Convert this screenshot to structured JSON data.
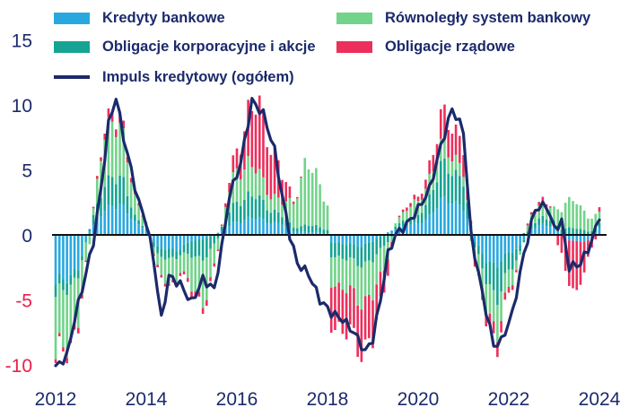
{
  "chart_data": {
    "type": "bar",
    "stacked": true,
    "title": "",
    "xlabel": "",
    "ylabel": "",
    "ylim": [
      -10.5,
      16
    ],
    "yticks": [
      15,
      10,
      5,
      0,
      -5,
      -10
    ],
    "xticks": [
      "2012",
      "2014",
      "2016",
      "2018",
      "2020",
      "2022",
      "2024"
    ],
    "x_start": "2012-01",
    "x_end": "2024-01",
    "grid": false,
    "legend_position": "top",
    "colors": {
      "bank": "#29a8e0",
      "shadow": "#72d38a",
      "corp": "#16a393",
      "gov": "#ec2f5c",
      "impulse": "#1b2a6b",
      "axis_text_pos": "#1b2a6b",
      "axis_text_neg": "#e8204b"
    },
    "series": [
      {
        "key": "bank",
        "name": "Kredyty bankowe",
        "kind": "bar"
      },
      {
        "key": "shadow",
        "name": "Równoległy system bankowy",
        "kind": "bar"
      },
      {
        "key": "corp",
        "name": "Obligacje korporacyjne i akcje",
        "kind": "bar"
      },
      {
        "key": "gov",
        "name": "Obligacje rządowe",
        "kind": "bar"
      },
      {
        "key": "impulse",
        "name": "Impuls kredytowy (ogółem)",
        "kind": "line"
      }
    ],
    "components_anchor": [
      {
        "date": "2012-01",
        "bank": -4.0,
        "shadow": -5.0,
        "corp": -1.0,
        "gov": -0.3
      },
      {
        "date": "2012-07",
        "bank": -2.5,
        "shadow": -3.5,
        "corp": -0.6,
        "gov": -0.4
      },
      {
        "date": "2012-10",
        "bank": 0.3,
        "shadow": -0.8,
        "corp": 0.2,
        "gov": 0.0
      },
      {
        "date": "2013-01",
        "bank": 1.5,
        "shadow": 3.0,
        "corp": 1.5,
        "gov": 0.3
      },
      {
        "date": "2013-04",
        "bank": 2.5,
        "shadow": 4.8,
        "corp": 2.5,
        "gov": 0.8
      },
      {
        "date": "2013-07",
        "bank": 2.0,
        "shadow": 3.2,
        "corp": 1.8,
        "gov": 0.5
      },
      {
        "date": "2013-10",
        "bank": 1.0,
        "shadow": 1.5,
        "corp": 0.5,
        "gov": 0.3
      },
      {
        "date": "2014-01",
        "bank": 0.5,
        "shadow": 0.5,
        "corp": 0.0,
        "gov": 0.0
      },
      {
        "date": "2014-04",
        "bank": -1.0,
        "shadow": -1.0,
        "corp": -0.6,
        "gov": -0.2
      },
      {
        "date": "2014-07",
        "bank": -1.2,
        "shadow": -2.2,
        "corp": -0.8,
        "gov": -0.2
      },
      {
        "date": "2014-10",
        "bank": -1.0,
        "shadow": -1.2,
        "corp": -0.4,
        "gov": -0.2
      },
      {
        "date": "2015-01",
        "bank": -0.5,
        "shadow": -2.5,
        "corp": -1.2,
        "gov": -0.4
      },
      {
        "date": "2015-04",
        "bank": -0.3,
        "shadow": -3.3,
        "corp": -1.5,
        "gov": -0.4
      },
      {
        "date": "2015-07",
        "bank": 0.0,
        "shadow": -1.8,
        "corp": -0.8,
        "gov": -0.3
      },
      {
        "date": "2015-10",
        "bank": 0.5,
        "shadow": 1.0,
        "corp": 0.8,
        "gov": 0.3
      },
      {
        "date": "2016-01",
        "bank": 1.0,
        "shadow": 2.5,
        "corp": 1.5,
        "gov": 1.5
      },
      {
        "date": "2016-04",
        "bank": 1.3,
        "shadow": 2.5,
        "corp": 1.8,
        "gov": 4.0
      },
      {
        "date": "2016-07",
        "bank": 1.2,
        "shadow": 1.8,
        "corp": 1.5,
        "gov": 5.0
      },
      {
        "date": "2016-10",
        "bank": 1.0,
        "shadow": 1.2,
        "corp": 1.0,
        "gov": 4.0
      },
      {
        "date": "2017-01",
        "bank": 0.8,
        "shadow": 1.0,
        "corp": 0.6,
        "gov": 2.0
      },
      {
        "date": "2017-04",
        "bank": 0.3,
        "shadow": 2.0,
        "corp": 0.3,
        "gov": 0.2
      },
      {
        "date": "2017-07",
        "bank": 0.2,
        "shadow": 4.5,
        "corp": 0.5,
        "gov": 0.0
      },
      {
        "date": "2017-10",
        "bank": 0.2,
        "shadow": 4.0,
        "corp": 0.5,
        "gov": 0.0
      },
      {
        "date": "2018-01",
        "bank": 0.1,
        "shadow": 2.0,
        "corp": 0.3,
        "gov": 0.0
      },
      {
        "date": "2018-02",
        "bank": -0.5,
        "shadow": -2.0,
        "corp": -1.0,
        "gov": -3.0
      },
      {
        "date": "2018-07",
        "bank": -0.8,
        "shadow": -2.5,
        "corp": -1.2,
        "gov": -3.5
      },
      {
        "date": "2018-10",
        "bank": -0.8,
        "shadow": -2.8,
        "corp": -1.4,
        "gov": -3.5
      },
      {
        "date": "2019-01",
        "bank": -0.5,
        "shadow": -2.8,
        "corp": -1.5,
        "gov": -3.5
      },
      {
        "date": "2019-04",
        "bank": 0.0,
        "shadow": -1.8,
        "corp": -0.8,
        "gov": -1.6
      },
      {
        "date": "2019-07",
        "bank": 0.5,
        "shadow": 0.3,
        "corp": 0.2,
        "gov": 0.0
      },
      {
        "date": "2019-10",
        "bank": 0.8,
        "shadow": 0.8,
        "corp": 0.5,
        "gov": 0.3
      },
      {
        "date": "2020-01",
        "bank": 0.8,
        "shadow": 1.0,
        "corp": 0.6,
        "gov": 0.3
      },
      {
        "date": "2020-04",
        "bank": 1.5,
        "shadow": 1.5,
        "corp": 1.5,
        "gov": 1.0
      },
      {
        "date": "2020-07",
        "bank": 2.5,
        "shadow": 1.5,
        "corp": 2.5,
        "gov": 2.0
      },
      {
        "date": "2020-10",
        "bank": 2.8,
        "shadow": 1.3,
        "corp": 2.5,
        "gov": 2.5
      },
      {
        "date": "2021-01",
        "bank": 2.0,
        "shadow": 0.8,
        "corp": 2.0,
        "gov": 1.8
      },
      {
        "date": "2021-04",
        "bank": -0.5,
        "shadow": -1.0,
        "corp": -0.5,
        "gov": -0.5
      },
      {
        "date": "2021-07",
        "bank": -2.0,
        "shadow": -2.2,
        "corp": -1.5,
        "gov": -0.8
      },
      {
        "date": "2021-10",
        "bank": -2.2,
        "shadow": -2.5,
        "corp": -2.5,
        "gov": -1.0
      },
      {
        "date": "2022-01",
        "bank": -1.5,
        "shadow": -1.5,
        "corp": -1.5,
        "gov": -0.5
      },
      {
        "date": "2022-04",
        "bank": -0.8,
        "shadow": -0.3,
        "corp": -0.5,
        "gov": 0.0
      },
      {
        "date": "2022-07",
        "bank": 0.5,
        "shadow": 0.8,
        "corp": 0.5,
        "gov": 0.2
      },
      {
        "date": "2022-10",
        "bank": 0.8,
        "shadow": 1.0,
        "corp": 0.5,
        "gov": 0.3
      },
      {
        "date": "2023-01",
        "bank": 0.5,
        "shadow": 1.0,
        "corp": 0.5,
        "gov": 0.0
      },
      {
        "date": "2023-04",
        "bank": -0.3,
        "shadow": 2.0,
        "corp": 0.5,
        "gov": -2.5
      },
      {
        "date": "2023-07",
        "bank": -0.5,
        "shadow": 2.0,
        "corp": 0.5,
        "gov": -4.0
      },
      {
        "date": "2023-10",
        "bank": -0.5,
        "shadow": 1.2,
        "corp": 0.3,
        "gov": -1.5
      },
      {
        "date": "2024-01",
        "bank": 0.5,
        "shadow": 0.8,
        "corp": 0.3,
        "gov": 0.3
      }
    ],
    "impulse_anchor": [
      {
        "date": "2012-01",
        "value": -10.2
      },
      {
        "date": "2012-04",
        "value": -9.3
      },
      {
        "date": "2012-06",
        "value": -6.5
      },
      {
        "date": "2012-09",
        "value": -3.0
      },
      {
        "date": "2012-11",
        "value": -0.5
      },
      {
        "date": "2013-01",
        "value": 3.5
      },
      {
        "date": "2013-03",
        "value": 8.5
      },
      {
        "date": "2013-05",
        "value": 10.6
      },
      {
        "date": "2013-07",
        "value": 7.5
      },
      {
        "date": "2013-09",
        "value": 5.0
      },
      {
        "date": "2013-11",
        "value": 2.5
      },
      {
        "date": "2014-01",
        "value": 1.0
      },
      {
        "date": "2014-03",
        "value": -2.0
      },
      {
        "date": "2014-05",
        "value": -6.5
      },
      {
        "date": "2014-07",
        "value": -3.2
      },
      {
        "date": "2014-10",
        "value": -3.8
      },
      {
        "date": "2015-01",
        "value": -5.2
      },
      {
        "date": "2015-04",
        "value": -3.4
      },
      {
        "date": "2015-07",
        "value": -4.2
      },
      {
        "date": "2015-09",
        "value": -1.0
      },
      {
        "date": "2015-11",
        "value": 3.0
      },
      {
        "date": "2016-02",
        "value": 5.5
      },
      {
        "date": "2016-05",
        "value": 10.3
      },
      {
        "date": "2016-08",
        "value": 9.3
      },
      {
        "date": "2016-11",
        "value": 6.5
      },
      {
        "date": "2017-01",
        "value": 3.0
      },
      {
        "date": "2017-03",
        "value": 0.0
      },
      {
        "date": "2017-05",
        "value": -2.2
      },
      {
        "date": "2017-08",
        "value": -3.0
      },
      {
        "date": "2017-11",
        "value": -5.0
      },
      {
        "date": "2018-02",
        "value": -6.0
      },
      {
        "date": "2018-05",
        "value": -6.5
      },
      {
        "date": "2018-08",
        "value": -7.5
      },
      {
        "date": "2018-11",
        "value": -9.0
      },
      {
        "date": "2019-01",
        "value": -8.0
      },
      {
        "date": "2019-03",
        "value": -5.0
      },
      {
        "date": "2019-05",
        "value": -1.5
      },
      {
        "date": "2019-07",
        "value": 0.0
      },
      {
        "date": "2019-10",
        "value": 0.8
      },
      {
        "date": "2020-01",
        "value": 2.0
      },
      {
        "date": "2020-04",
        "value": 3.5
      },
      {
        "date": "2020-07",
        "value": 6.8
      },
      {
        "date": "2020-10",
        "value": 9.7
      },
      {
        "date": "2021-01",
        "value": 8.0
      },
      {
        "date": "2021-03",
        "value": 0.0
      },
      {
        "date": "2021-06",
        "value": -4.5
      },
      {
        "date": "2021-09",
        "value": -8.5
      },
      {
        "date": "2021-11",
        "value": -8.2
      },
      {
        "date": "2022-02",
        "value": -6.0
      },
      {
        "date": "2022-05",
        "value": -1.5
      },
      {
        "date": "2022-08",
        "value": 2.0
      },
      {
        "date": "2022-11",
        "value": 2.3
      },
      {
        "date": "2023-01",
        "value": 0.5
      },
      {
        "date": "2023-03",
        "value": 1.0
      },
      {
        "date": "2023-05",
        "value": -2.5
      },
      {
        "date": "2023-08",
        "value": -2.2
      },
      {
        "date": "2023-11",
        "value": -0.5
      },
      {
        "date": "2024-01",
        "value": 1.5
      }
    ]
  }
}
